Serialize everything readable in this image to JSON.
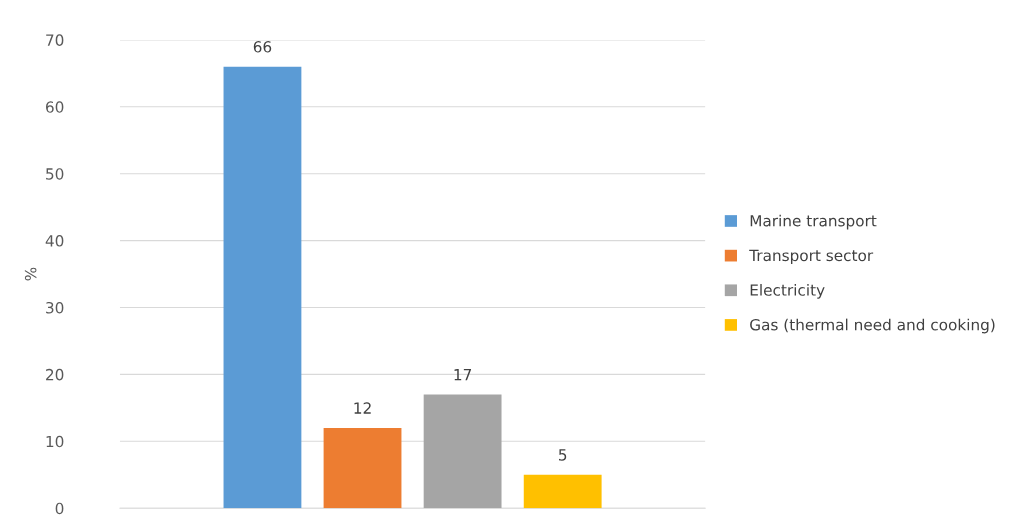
{
  "chart_data": {
    "type": "bar",
    "categories": [
      null
    ],
    "ylabel": "%",
    "series": [
      {
        "name": "Marine transport",
        "color": "#5b9bd5",
        "values": [
          66
        ]
      },
      {
        "name": "Transport sector",
        "color": "#ed7d31",
        "values": [
          12
        ]
      },
      {
        "name": "Electricity",
        "color": "#a5a5a5",
        "values": [
          17
        ]
      },
      {
        "name": "Gas (thermal need and cooking)",
        "color": "#ffc000",
        "values": [
          5
        ]
      }
    ],
    "ylim": [
      0,
      70
    ],
    "yticks": [
      0,
      10,
      20,
      30,
      40,
      50,
      60,
      70
    ],
    "grid": "y",
    "legend": "right",
    "data_labels": true
  }
}
